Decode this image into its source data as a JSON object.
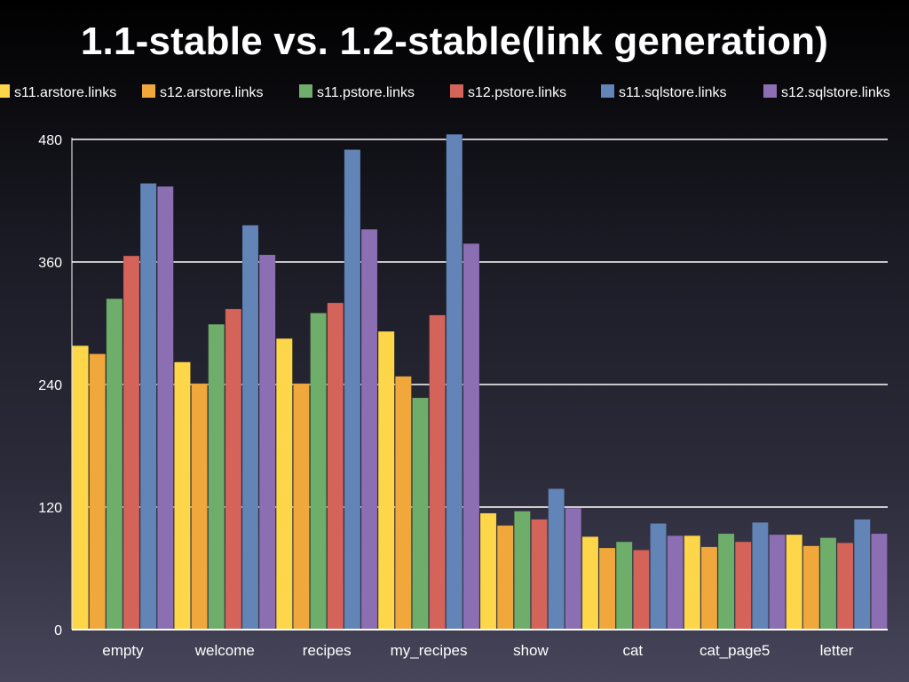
{
  "chart_data": {
    "type": "bar",
    "title": "1.1-stable vs. 1.2-stable(link generation)",
    "xlabel": "",
    "ylabel": "",
    "ylim": [
      0,
      480
    ],
    "yticks": [
      "0",
      "120",
      "240",
      "360",
      "480"
    ],
    "grid": true,
    "legend_position": "top",
    "categories": [
      "empty",
      "welcome",
      "recipes",
      "my_recipes",
      "show",
      "cat",
      "cat_page5",
      "letter"
    ],
    "series": [
      {
        "name": "s11.arstore.links",
        "color": "#fdd64a",
        "values": [
          278,
          262,
          285,
          292,
          114,
          91,
          92,
          93
        ]
      },
      {
        "name": "s12.arstore.links",
        "color": "#f0a73c",
        "values": [
          270,
          241,
          241,
          248,
          102,
          80,
          81,
          82
        ]
      },
      {
        "name": "s11.pstore.links",
        "color": "#6fad6b",
        "values": [
          324,
          299,
          310,
          227,
          116,
          86,
          94,
          90
        ]
      },
      {
        "name": "s12.pstore.links",
        "color": "#d4635a",
        "values": [
          366,
          314,
          320,
          308,
          108,
          78,
          86,
          85
        ]
      },
      {
        "name": "s11.sqlstore.links",
        "color": "#6384b6",
        "values": [
          437,
          396,
          470,
          485,
          138,
          104,
          105,
          108
        ]
      },
      {
        "name": "s12.sqlstore.links",
        "color": "#8c6eb3",
        "values": [
          434,
          367,
          392,
          378,
          119,
          92,
          93,
          94
        ]
      }
    ]
  }
}
